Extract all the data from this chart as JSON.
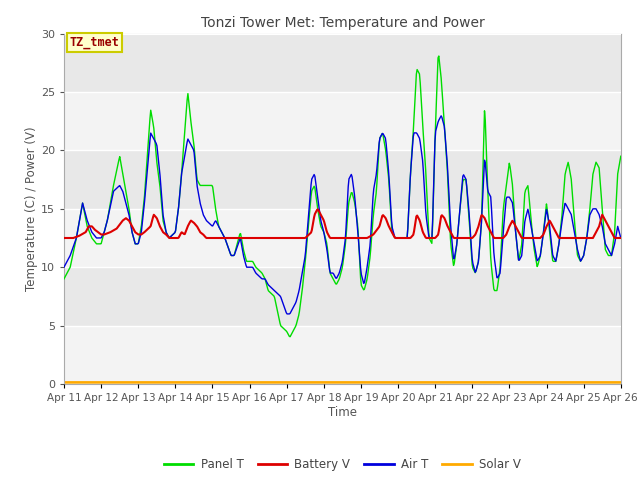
{
  "title": "Tonzi Tower Met: Temperature and Power",
  "xlabel": "Time",
  "ylabel": "Temperature (C) / Power (V)",
  "annotation": "TZ_tmet",
  "ylim": [
    0,
    30
  ],
  "xlim": [
    0,
    360
  ],
  "x_tick_labels": [
    "Apr 11",
    "Apr 12",
    "Apr 13",
    "Apr 14",
    "Apr 15",
    "Apr 16",
    "Apr 17",
    "Apr 18",
    "Apr 19",
    "Apr 20",
    "Apr 21",
    "Apr 22",
    "Apr 23",
    "Apr 24",
    "Apr 25",
    "Apr 26"
  ],
  "colors": {
    "panel_t": "#00DD00",
    "battery_v": "#DD0000",
    "air_t": "#0000DD",
    "solar_v": "#FFAA00"
  },
  "legend_labels": [
    "Panel T",
    "Battery V",
    "Air T",
    "Solar V"
  ],
  "bg_color": "#E8E8E8",
  "annotation_bg": "#FFFFCC",
  "annotation_fg": "#990000",
  "annotation_border": "#CCCC00"
}
